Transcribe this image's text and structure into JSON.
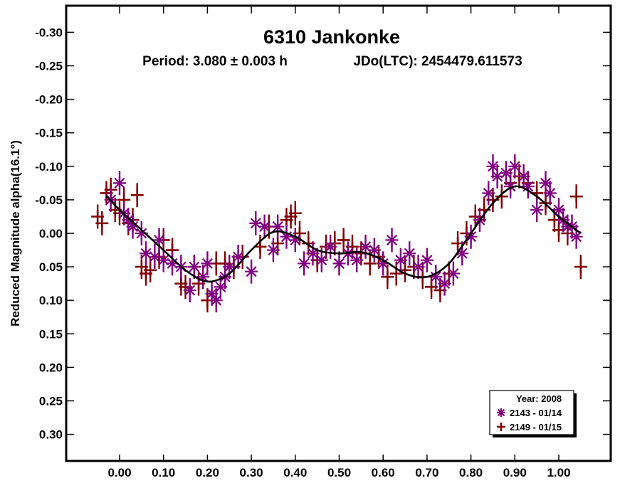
{
  "chart_data": {
    "type": "scatter",
    "title": "6310 Jankonke",
    "subtitle_period": "Period: 3.080 ± 0.003 h",
    "subtitle_epoch": "JDo(LTC): 2454479.611573",
    "xlabel": "",
    "ylabel": "Reduced Magnitude alpha(16.1°)",
    "xlim": [
      -0.12,
      1.12
    ],
    "ylim": [
      -0.34,
      0.34
    ],
    "y_inverted": true,
    "grid": false,
    "x_ticks": [
      "0.00",
      "0.10",
      "0.20",
      "0.30",
      "0.40",
      "0.50",
      "0.60",
      "0.70",
      "0.80",
      "0.90",
      "1.00"
    ],
    "x_tick_values": [
      0,
      0.1,
      0.2,
      0.3,
      0.4,
      0.5,
      0.6,
      0.7,
      0.8,
      0.9,
      1.0
    ],
    "y_ticks": [
      "-0.30",
      "-0.25",
      "-0.20",
      "-0.15",
      "-0.10",
      "-0.05",
      "0.00",
      "0.05",
      "0.10",
      "0.15",
      "0.20",
      "0.25",
      "0.30"
    ],
    "y_tick_values": [
      -0.3,
      -0.25,
      -0.2,
      -0.15,
      -0.1,
      -0.05,
      0,
      0.05,
      0.1,
      0.15,
      0.2,
      0.25,
      0.3
    ],
    "legend": {
      "position": "bottom-right",
      "title": "Year: 2008",
      "entries": [
        {
          "label": "2143 - 01/14",
          "marker": "asterisk",
          "color": "#800080"
        },
        {
          "label": "2149 - 01/15",
          "marker": "plus",
          "color": "#800000"
        }
      ]
    },
    "fit_curve": {
      "color": "#000000",
      "x": [
        -0.03,
        0.0,
        0.05,
        0.1,
        0.15,
        0.2,
        0.25,
        0.3,
        0.35,
        0.4,
        0.45,
        0.5,
        0.55,
        0.6,
        0.65,
        0.7,
        0.75,
        0.8,
        0.85,
        0.9,
        0.95,
        1.0,
        1.05
      ],
      "y": [
        -0.056,
        -0.035,
        -0.005,
        0.025,
        0.055,
        0.072,
        0.06,
        0.025,
        -0.002,
        0.005,
        0.025,
        0.03,
        0.028,
        0.04,
        0.06,
        0.065,
        0.045,
        0.0,
        -0.045,
        -0.07,
        -0.055,
        -0.025,
        0.0
      ]
    },
    "series": [
      {
        "name": "2143 - 01/14",
        "marker": "asterisk",
        "color": "#800080",
        "x": [
          -0.02,
          0.0,
          0.01,
          0.02,
          0.03,
          0.05,
          0.06,
          0.08,
          0.09,
          0.1,
          0.12,
          0.14,
          0.16,
          0.17,
          0.19,
          0.2,
          0.21,
          0.22,
          0.23,
          0.24,
          0.25,
          0.27,
          0.3,
          0.31,
          0.33,
          0.35,
          0.36,
          0.38,
          0.4,
          0.42,
          0.44,
          0.46,
          0.48,
          0.5,
          0.52,
          0.54,
          0.56,
          0.58,
          0.6,
          0.62,
          0.64,
          0.66,
          0.68,
          0.7,
          0.72,
          0.74,
          0.76,
          0.78,
          0.8,
          0.82,
          0.84,
          0.85,
          0.86,
          0.88,
          0.89,
          0.9,
          0.92,
          0.93,
          0.95,
          0.97,
          0.98,
          1.0,
          1.01,
          1.02,
          1.03,
          1.04
        ],
        "y": [
          -0.05,
          -0.075,
          -0.03,
          -0.02,
          -0.01,
          0.0,
          0.03,
          0.035,
          0.01,
          0.04,
          0.045,
          0.05,
          0.085,
          0.05,
          0.065,
          0.045,
          0.09,
          0.1,
          0.08,
          0.065,
          0.05,
          0.035,
          0.057,
          -0.015,
          -0.01,
          0.025,
          -0.01,
          0.005,
          0.01,
          0.045,
          0.03,
          0.04,
          0.02,
          0.045,
          0.03,
          0.04,
          0.02,
          0.025,
          0.045,
          0.01,
          0.04,
          0.03,
          0.05,
          0.04,
          0.065,
          0.075,
          0.06,
          0.03,
          0.005,
          -0.02,
          -0.06,
          -0.1,
          -0.085,
          -0.09,
          -0.07,
          -0.1,
          -0.085,
          -0.07,
          -0.035,
          -0.075,
          -0.06,
          -0.035,
          -0.02,
          -0.01,
          -0.01,
          0.005
        ]
      },
      {
        "name": "2149 - 01/15",
        "marker": "plus",
        "color": "#800000",
        "x": [
          -0.05,
          -0.04,
          -0.03,
          -0.02,
          -0.01,
          0.0,
          0.01,
          0.02,
          0.03,
          0.04,
          0.05,
          0.06,
          0.07,
          0.09,
          0.1,
          0.12,
          0.14,
          0.15,
          0.17,
          0.18,
          0.2,
          0.22,
          0.24,
          0.26,
          0.28,
          0.32,
          0.34,
          0.36,
          0.38,
          0.39,
          0.4,
          0.41,
          0.43,
          0.45,
          0.47,
          0.49,
          0.51,
          0.53,
          0.55,
          0.57,
          0.59,
          0.61,
          0.63,
          0.65,
          0.67,
          0.69,
          0.71,
          0.73,
          0.75,
          0.77,
          0.79,
          0.81,
          0.83,
          0.85,
          0.87,
          0.89,
          0.91,
          0.93,
          0.95,
          0.97,
          0.99,
          1.0,
          1.02,
          1.04,
          1.05
        ],
        "y": [
          -0.025,
          -0.015,
          -0.06,
          -0.065,
          -0.035,
          -0.03,
          -0.05,
          -0.015,
          -0.02,
          -0.057,
          0.05,
          0.06,
          0.055,
          0.035,
          0.01,
          0.025,
          0.075,
          0.08,
          0.05,
          0.075,
          0.1,
          0.045,
          0.045,
          0.05,
          0.035,
          0.02,
          -0.01,
          0.015,
          -0.02,
          -0.025,
          -0.03,
          0.0,
          0.015,
          0.04,
          0.02,
          0.015,
          0.01,
          0.02,
          0.03,
          0.045,
          0.035,
          0.065,
          0.06,
          0.055,
          0.05,
          0.065,
          0.08,
          0.085,
          0.06,
          0.015,
          0.0,
          -0.025,
          -0.035,
          -0.05,
          -0.055,
          -0.075,
          -0.085,
          -0.075,
          -0.06,
          -0.045,
          -0.02,
          -0.005,
          0.0,
          -0.055,
          0.05
        ]
      }
    ]
  }
}
